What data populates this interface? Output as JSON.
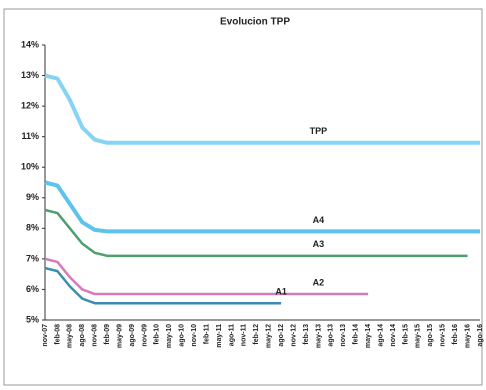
{
  "chart_data": {
    "type": "line",
    "title": "Evolucion TPP",
    "categories": [
      "nov-07",
      "feb-08",
      "may-08",
      "ago-08",
      "nov-08",
      "feb-09",
      "may-09",
      "ago-09",
      "nov-09",
      "feb-10",
      "may-10",
      "ago-10",
      "nov-10",
      "feb-11",
      "may-11",
      "ago-11",
      "nov-11",
      "feb-12",
      "may-12",
      "ago-12",
      "nov-12",
      "feb-13",
      "may-13",
      "ago-13",
      "nov-13",
      "feb-14",
      "may-14",
      "ago-14",
      "nov-14",
      "feb-15",
      "may-15",
      "ago-15",
      "nov-15",
      "feb-16",
      "may-16",
      "ago-16"
    ],
    "ylim": [
      5,
      14
    ],
    "yticks": [
      {
        "value": 5,
        "label": "5%"
      },
      {
        "value": 6,
        "label": "6%"
      },
      {
        "value": 7,
        "label": "7%"
      },
      {
        "value": 8,
        "label": "8%"
      },
      {
        "value": 9,
        "label": "9%"
      },
      {
        "value": 10,
        "label": "10%"
      },
      {
        "value": 11,
        "label": "11%"
      },
      {
        "value": 12,
        "label": "12%"
      },
      {
        "value": 13,
        "label": "13%"
      },
      {
        "value": 14,
        "label": "14%"
      }
    ],
    "series": [
      {
        "name": "TPP",
        "color": "#86d4f3",
        "values": [
          13.0,
          12.9,
          12.2,
          11.3,
          10.9,
          10.8,
          10.8,
          10.8,
          10.8,
          10.8,
          10.8,
          10.8,
          10.8,
          10.8,
          10.8,
          10.8,
          10.8,
          10.8,
          10.8,
          10.8,
          10.8,
          10.8,
          10.8,
          10.8,
          10.8,
          10.8,
          10.8,
          10.8,
          10.8,
          10.8,
          10.8,
          10.8,
          10.8,
          10.8,
          10.8,
          10.8
        ]
      },
      {
        "name": "A4",
        "color": "#5cc3ec",
        "values": [
          9.5,
          9.4,
          8.8,
          8.2,
          7.95,
          7.9,
          7.9,
          7.9,
          7.9,
          7.9,
          7.9,
          7.9,
          7.9,
          7.9,
          7.9,
          7.9,
          7.9,
          7.9,
          7.9,
          7.9,
          7.9,
          7.9,
          7.9,
          7.9,
          7.9,
          7.9,
          7.9,
          7.9,
          7.9,
          7.9,
          7.9,
          7.9,
          7.9,
          7.9,
          7.9,
          7.9
        ]
      },
      {
        "name": "A3",
        "color": "#4e9e6e",
        "values": [
          8.6,
          8.5,
          8.0,
          7.5,
          7.2,
          7.1,
          7.1,
          7.1,
          7.1,
          7.1,
          7.1,
          7.1,
          7.1,
          7.1,
          7.1,
          7.1,
          7.1,
          7.1,
          7.1,
          7.1,
          7.1,
          7.1,
          7.1,
          7.1,
          7.1,
          7.1,
          7.1,
          7.1,
          7.1,
          7.1,
          7.1,
          7.1,
          7.1,
          7.1,
          7.1,
          null
        ]
      },
      {
        "name": "A2",
        "color": "#d77bb8",
        "values": [
          7.0,
          6.9,
          6.4,
          6.0,
          5.85,
          5.85,
          5.85,
          5.85,
          5.85,
          5.85,
          5.85,
          5.85,
          5.85,
          5.85,
          5.85,
          5.85,
          5.85,
          5.85,
          5.85,
          5.85,
          5.85,
          5.85,
          5.85,
          5.85,
          5.85,
          5.85,
          5.85,
          null,
          null,
          null,
          null,
          null,
          null,
          null,
          null,
          null
        ]
      },
      {
        "name": "A1",
        "color": "#3a8db0",
        "values": [
          6.7,
          6.6,
          6.1,
          5.7,
          5.55,
          5.55,
          5.55,
          5.55,
          5.55,
          5.55,
          5.55,
          5.55,
          5.55,
          5.55,
          5.55,
          5.55,
          5.55,
          5.55,
          5.55,
          5.55,
          null,
          null,
          null,
          null,
          null,
          null,
          null,
          null,
          null,
          null,
          null,
          null,
          null,
          null,
          null,
          null
        ]
      }
    ]
  }
}
